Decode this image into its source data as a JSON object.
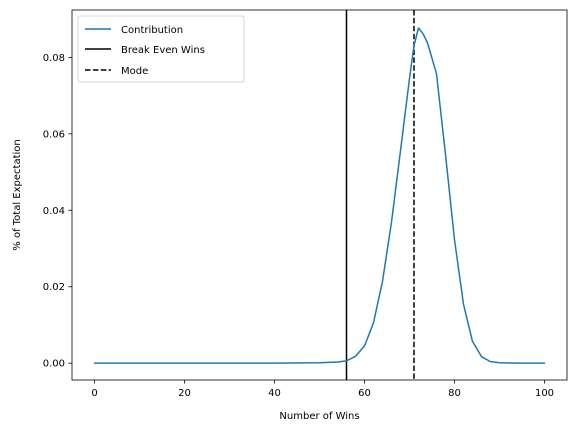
{
  "chart_data": {
    "type": "line",
    "xlabel": "Number of Wins",
    "ylabel": "% of Total Expectation",
    "xlim": [
      -5,
      105
    ],
    "ylim": [
      -0.0044,
      0.0924
    ],
    "x_ticks": [
      0,
      20,
      40,
      60,
      80,
      100
    ],
    "x_tick_labels": [
      "0",
      "20",
      "40",
      "60",
      "80",
      "100"
    ],
    "y_ticks": [
      0.0,
      0.02,
      0.04,
      0.06,
      0.08
    ],
    "y_tick_labels": [
      "0.00",
      "0.02",
      "0.04",
      "0.06",
      "0.08"
    ],
    "grid": false,
    "legend_position": "top-left",
    "series": [
      {
        "name": "Contribution",
        "color": "#1f77b4",
        "style": "solid",
        "x": [
          0,
          10,
          20,
          30,
          40,
          50,
          54,
          56,
          58,
          60,
          62,
          64,
          66,
          68,
          70,
          71,
          72,
          73,
          74,
          76,
          78,
          80,
          82,
          84,
          86,
          88,
          90,
          95,
          100
        ],
        "y": [
          0.0,
          0.0,
          0.0,
          0.0,
          0.0,
          0.0001,
          0.0003,
          0.0006,
          0.0018,
          0.0045,
          0.0106,
          0.0214,
          0.0369,
          0.0556,
          0.0745,
          0.0831,
          0.0877,
          0.0862,
          0.0838,
          0.0757,
          0.0546,
          0.0323,
          0.0154,
          0.0057,
          0.0017,
          0.0004,
          0.0001,
          0.0,
          0.0
        ]
      }
    ],
    "vlines": [
      {
        "name": "Break Even Wins",
        "x": 56,
        "color": "#000000",
        "style": "solid"
      },
      {
        "name": "Mode",
        "x": 71,
        "color": "#000000",
        "style": "dashed"
      }
    ]
  }
}
